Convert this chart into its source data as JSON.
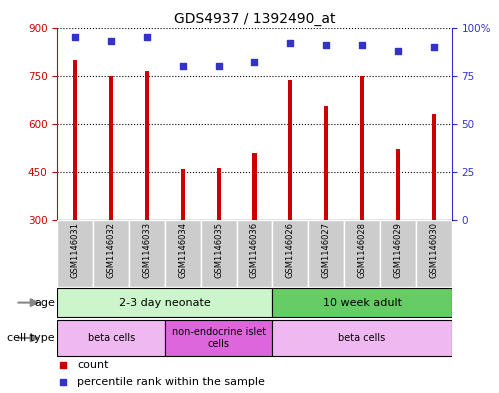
{
  "title": "GDS4937 / 1392490_at",
  "samples": [
    "GSM1146031",
    "GSM1146032",
    "GSM1146033",
    "GSM1146034",
    "GSM1146035",
    "GSM1146036",
    "GSM1146026",
    "GSM1146027",
    "GSM1146028",
    "GSM1146029",
    "GSM1146030"
  ],
  "counts": [
    800,
    750,
    765,
    460,
    462,
    510,
    735,
    655,
    750,
    520,
    630
  ],
  "percentiles": [
    95,
    93,
    95,
    80,
    80,
    82,
    92,
    91,
    91,
    88,
    90
  ],
  "bar_color": "#cc0000",
  "dot_color": "#3333cc",
  "ylim_left": [
    300,
    900
  ],
  "ylim_right": [
    0,
    100
  ],
  "yticks_left": [
    300,
    450,
    600,
    750,
    900
  ],
  "yticks_right": [
    0,
    25,
    50,
    75,
    100
  ],
  "left_axis_color": "#cc0000",
  "right_axis_color": "#3333cc",
  "age_groups": [
    {
      "label": "2-3 day neonate",
      "start": 0,
      "end": 6,
      "color": "#ccf5cc"
    },
    {
      "label": "10 week adult",
      "start": 6,
      "end": 11,
      "color": "#66cc66"
    }
  ],
  "cell_type_groups": [
    {
      "label": "beta cells",
      "start": 0,
      "end": 3,
      "color": "#f0b8f0"
    },
    {
      "label": "non-endocrine islet\ncells",
      "start": 3,
      "end": 6,
      "color": "#dd66dd"
    },
    {
      "label": "beta cells",
      "start": 6,
      "end": 11,
      "color": "#f0b8f0"
    }
  ],
  "sample_bg_color": "#cccccc",
  "sample_border_color": "#ffffff",
  "legend_count_color": "#cc0000",
  "legend_pct_color": "#3333cc",
  "background_color": "#ffffff",
  "bar_width": 0.12
}
